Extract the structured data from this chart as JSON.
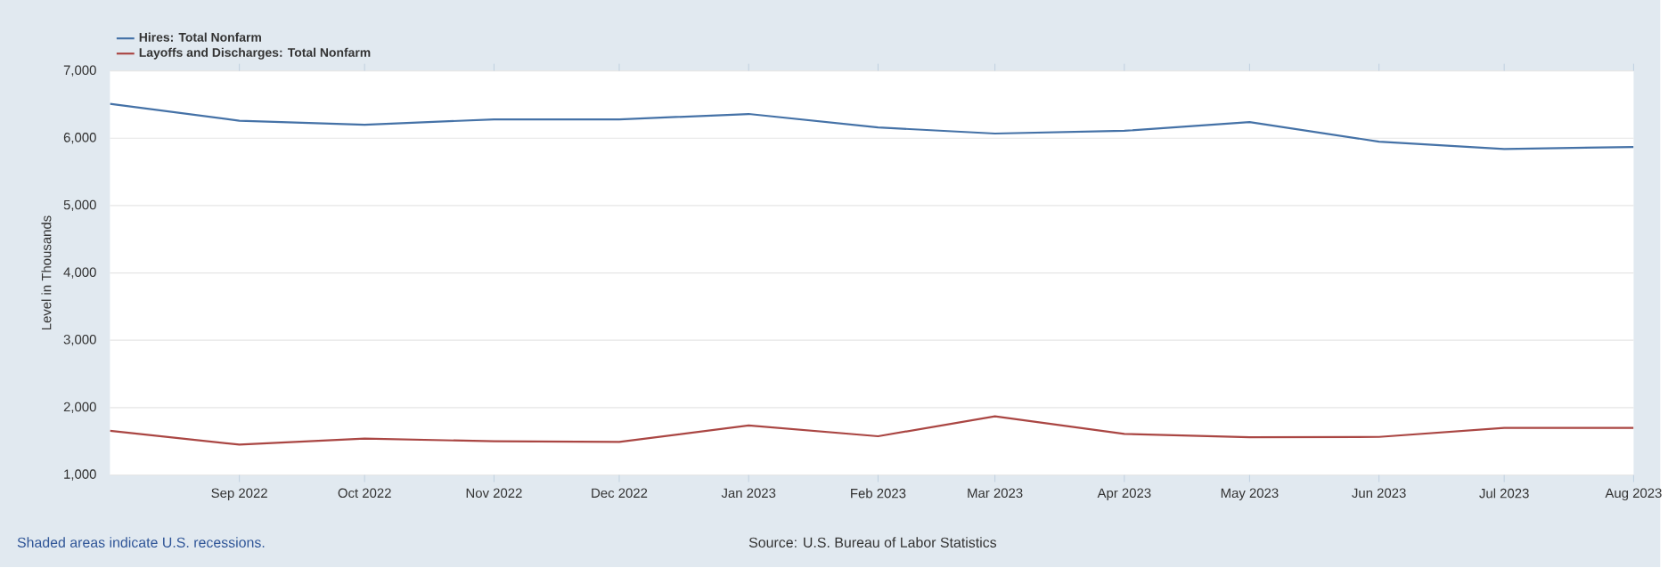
{
  "chart_data": {
    "type": "line",
    "ylabel": "Level in Thousands",
    "x": [
      "2022-08",
      "2022-09",
      "2022-10",
      "2022-11",
      "2022-12",
      "2023-01",
      "2023-02",
      "2023-03",
      "2023-04",
      "2023-05",
      "2023-06",
      "2023-07",
      "2023-08"
    ],
    "series": [
      {
        "name": "Hires: Total Nonfarm",
        "color": "#4572a7",
        "values": [
          6510,
          6260,
          6200,
          6280,
          6280,
          6360,
          6160,
          6070,
          6110,
          6240,
          5950,
          5840,
          5870
        ]
      },
      {
        "name": "Layoffs and Discharges: Total Nonfarm",
        "color": "#aa4643",
        "values": [
          1655,
          1450,
          1540,
          1500,
          1490,
          1735,
          1575,
          1870,
          1610,
          1560,
          1565,
          1700,
          1700
        ]
      }
    ],
    "xlim": [
      "2022-08",
      "2023-08"
    ],
    "xticks": [
      {
        "value": "2022-09",
        "label": "Sep 2022"
      },
      {
        "value": "2022-10",
        "label": "Oct 2022"
      },
      {
        "value": "2022-11",
        "label": "Nov 2022"
      },
      {
        "value": "2022-12",
        "label": "Dec 2022"
      },
      {
        "value": "2023-01",
        "label": "Jan 2023"
      },
      {
        "value": "2023-02",
        "label": "Feb 2023"
      },
      {
        "value": "2023-03",
        "label": "Mar 2023"
      },
      {
        "value": "2023-04",
        "label": "Apr 2023"
      },
      {
        "value": "2023-05",
        "label": "May 2023"
      },
      {
        "value": "2023-06",
        "label": "Jun 2023"
      },
      {
        "value": "2023-07",
        "label": "Jul 2023"
      },
      {
        "value": "2023-08",
        "label": "Aug 2023"
      }
    ],
    "ylim": [
      1000,
      7000
    ],
    "yticks": [
      {
        "value": 1000,
        "label": "1,000"
      },
      {
        "value": 2000,
        "label": "2,000"
      },
      {
        "value": 3000,
        "label": "3,000"
      },
      {
        "value": 4000,
        "label": "4,000"
      },
      {
        "value": 5000,
        "label": "5,000"
      },
      {
        "value": 6000,
        "label": "6,000"
      },
      {
        "value": 7000,
        "label": "7,000"
      }
    ],
    "grid": "y",
    "legend": "top left",
    "marker": "none",
    "line_style": "solid",
    "annotations": [
      "Shaded areas indicate U.S. recessions.",
      "Source: U.S. Bureau of Labor Statistics"
    ]
  }
}
